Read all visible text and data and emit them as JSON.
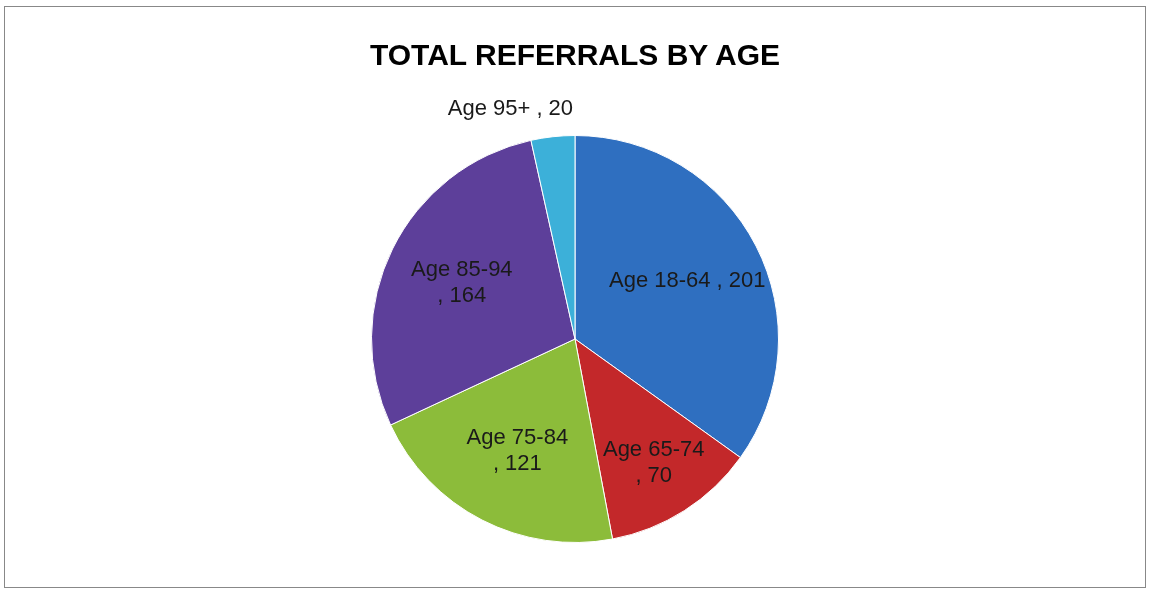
{
  "chart_data": {
    "type": "pie",
    "title": "TOTAL REFERRALS BY AGE",
    "categories": [
      "Age 18-64",
      "Age 65-74",
      "Age 75-84",
      "Age 85-94",
      "Age 95+"
    ],
    "values": [
      201,
      70,
      121,
      164,
      20
    ],
    "colors": [
      "#2f6fc0",
      "#c3282a",
      "#8cbc3a",
      "#5d3f9a",
      "#3cb0d9"
    ],
    "value_labels": [
      ", 201",
      ", 70",
      ", 121",
      ", 164",
      ", 20"
    ],
    "legend": false
  }
}
